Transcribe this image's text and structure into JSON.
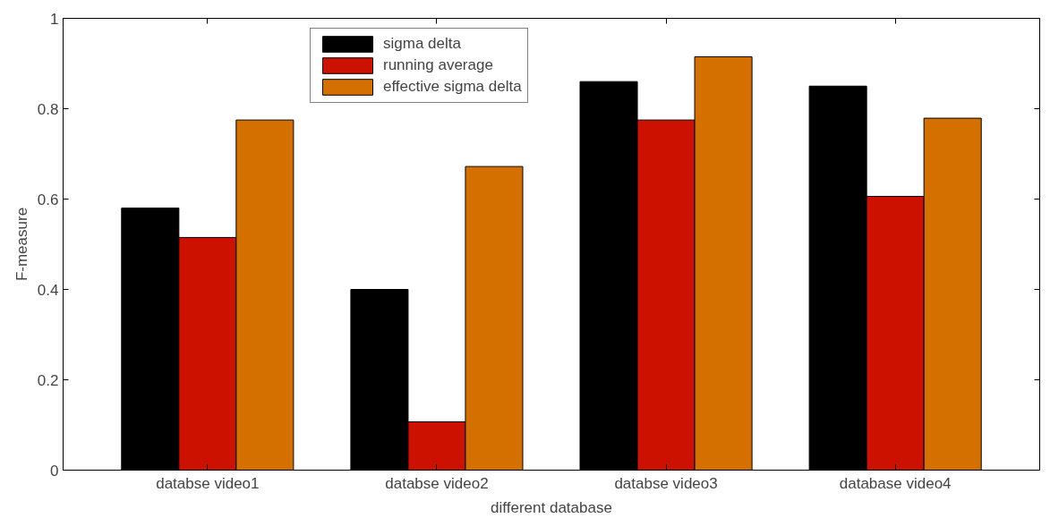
{
  "chart_data": {
    "type": "bar",
    "xlabel": "different database",
    "ylabel": "F-measure",
    "categories": [
      "databse video1",
      "databse video2",
      "databse video3",
      "database video4"
    ],
    "series": [
      {
        "name": "sigma delta",
        "color": "#000000",
        "values": [
          0.58,
          0.4,
          0.86,
          0.85
        ]
      },
      {
        "name": "running average",
        "color": "#cc1100",
        "values": [
          0.515,
          0.107,
          0.775,
          0.606
        ]
      },
      {
        "name": "effective sigma delta",
        "color": "#d47000",
        "values": [
          0.775,
          0.672,
          0.915,
          0.779
        ]
      }
    ],
    "ylim": [
      0,
      1
    ],
    "yticks": [
      0,
      0.2,
      0.4,
      0.6,
      0.8,
      1
    ],
    "grid": false,
    "legend": "top"
  }
}
